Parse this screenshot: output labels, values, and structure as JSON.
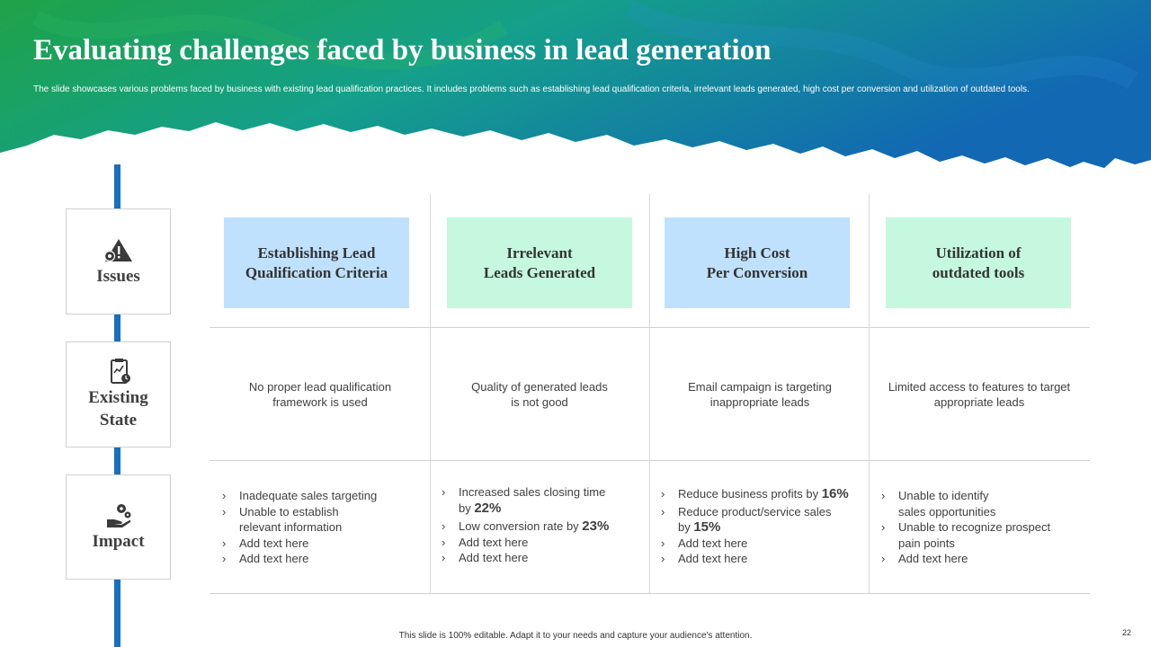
{
  "header": {
    "title": "Evaluating challenges faced by business in lead generation",
    "subtitle": "The slide showcases various problems faced by business with existing lead qualification practices. It includes problems such as establishing lead qualification criteria, irrelevant leads generated, high cost per conversion and utilization of outdated tools."
  },
  "rows": {
    "issues": {
      "label": "Issues",
      "icon": "warning-gear-icon"
    },
    "existing_state": {
      "label": "Existing\nState",
      "icon": "clipboard-chart-icon"
    },
    "impact": {
      "label": "Impact",
      "icon": "hand-gears-icon"
    }
  },
  "columns": [
    {
      "heading": "Establishing Lead\nQualification Criteria",
      "color": "#bfe1fd",
      "state": "No proper lead qualification\nframework is used",
      "impact": [
        "Inadequate sales targeting",
        "Unable to establish\nrelevant information",
        "Add text here",
        "Add text here"
      ]
    },
    {
      "heading": "Irrelevant\nLeads Generated",
      "color": "#c5f8de",
      "state": "Quality of generated leads\nis not good",
      "impact_text": {
        "i1_prefix": "Increased sales closing time\nby ",
        "i1_value": "22%",
        "i2_prefix": "Low conversion rate by ",
        "i2_value": "23%",
        "i3": "Add text here",
        "i4": "Add text here"
      }
    },
    {
      "heading": "High Cost\nPer Conversion",
      "color": "#bfe1fd",
      "state": "Email campaign is targeting\ninappropriate leads",
      "impact_text": {
        "i1_prefix": "Reduce business profits by ",
        "i1_value": "16%",
        "i2_prefix": "Reduce product/service sales\nby ",
        "i2_value": "15%",
        "i3": "Add text here",
        "i4": "Add text here"
      }
    },
    {
      "heading": "Utilization of\noutdated tools",
      "color": "#c5f8de",
      "state": "Limited access to features to target\nappropriate leads",
      "impact": [
        "Unable to identify\nsales opportunities",
        "Unable to recognize prospect\npain points",
        "Add text here"
      ]
    }
  ],
  "footer": {
    "note": "This slide is 100% editable. Adapt it to your needs and capture your audience's attention.",
    "page_number": "22"
  },
  "colors": {
    "banner_start": "#1fa347",
    "banner_end": "#1268b3",
    "timeline": "#1570c2"
  }
}
